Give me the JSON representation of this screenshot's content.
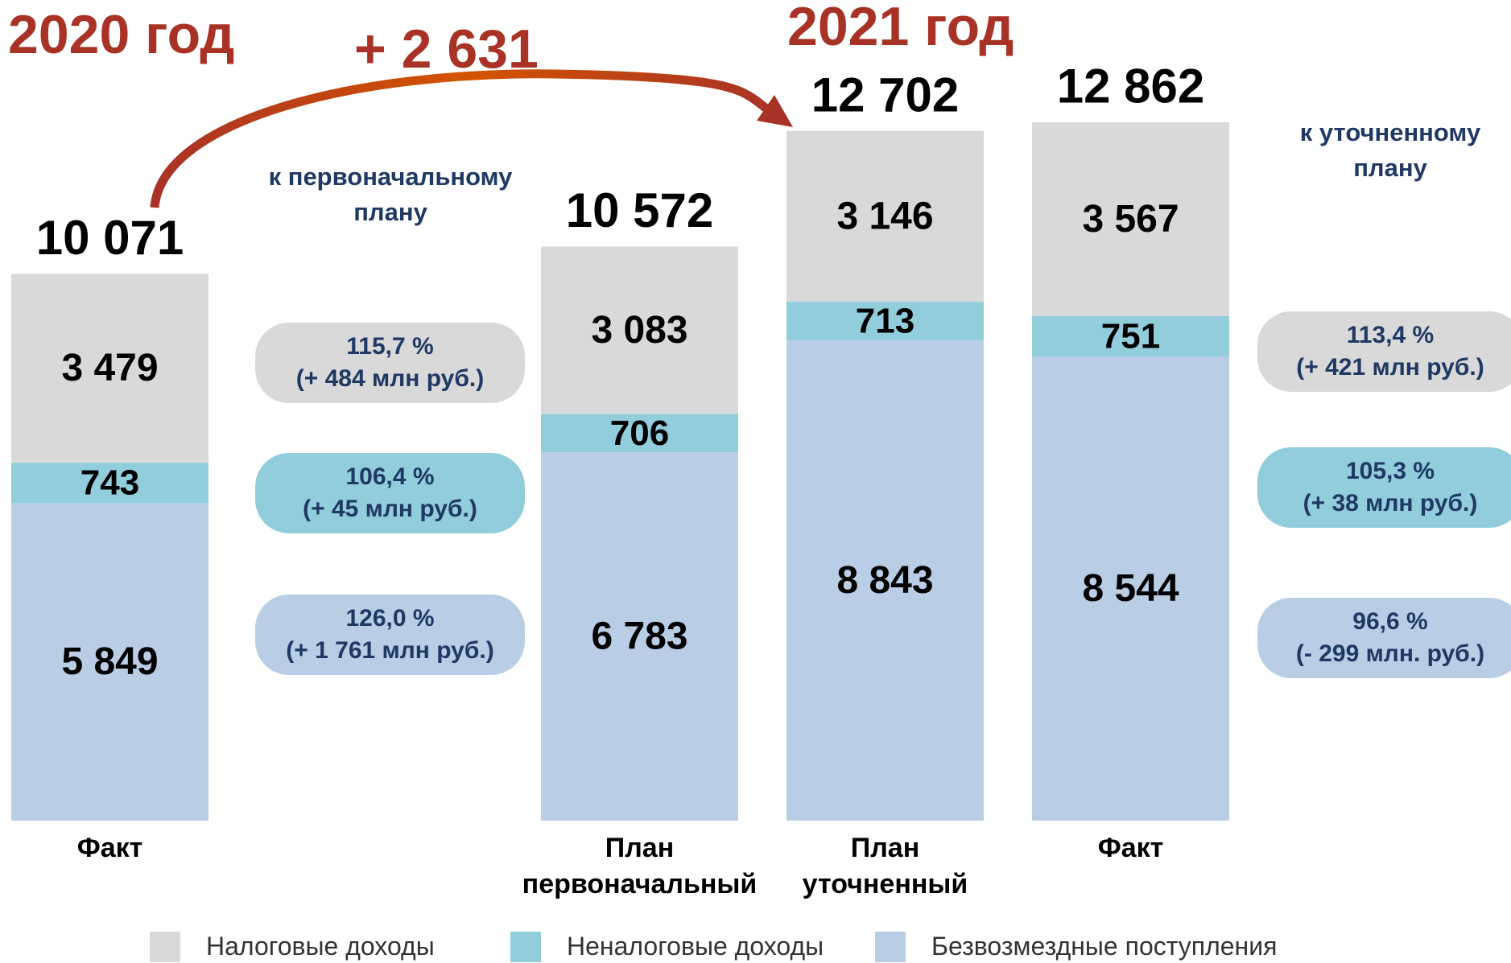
{
  "chart_data": {
    "type": "bar",
    "stacked": true,
    "categories": [
      "Факт",
      "План первоначальный",
      "План уточненный",
      "Факт"
    ],
    "series": [
      {
        "name": "Налоговые доходы",
        "color": "#d9d9d9",
        "values": [
          3479,
          3083,
          3146,
          3567
        ],
        "value_labels": [
          "3 479",
          "3 083",
          "3 146",
          "3 567"
        ]
      },
      {
        "name": "Неналоговые доходы",
        "color": "#92cddc",
        "values": [
          743,
          706,
          713,
          751
        ]
      },
      {
        "name": "Безвозмездные поступления",
        "color": "#b9cde5",
        "values": [
          5849,
          6783,
          8843,
          8544
        ],
        "value_labels": [
          "5 849",
          "6 783",
          "8 843",
          "8 544"
        ]
      }
    ],
    "totals": [
      10071,
      10572,
      12702,
      12862
    ],
    "total_labels": [
      "10 071",
      "10 572",
      "12 702",
      "12 862"
    ],
    "years": [
      "2020 год",
      "2021 год"
    ],
    "change": {
      "value": 2631,
      "label": "+ 2 631"
    },
    "comparisons": [
      {
        "title": [
          "к первоначальному",
          "плану"
        ],
        "items": [
          {
            "percent": "115,7 %",
            "change": "(+ 484 млн руб.)"
          },
          {
            "percent": "106,4 %",
            "change": "(+ 45 млн руб.)"
          },
          {
            "percent": "126,0 %",
            "change": "(+ 1 761 млн руб.)"
          }
        ]
      },
      {
        "title": [
          "к уточненному",
          "плану"
        ],
        "items": [
          {
            "percent": "113,4 %",
            "change": "(+ 421 млн руб.)"
          },
          {
            "percent": "105,3 %",
            "change": "(+ 38 млн руб.)"
          },
          {
            "percent": "96,6 %",
            "change": "(- 299 млн. руб.)"
          }
        ]
      }
    ]
  }
}
